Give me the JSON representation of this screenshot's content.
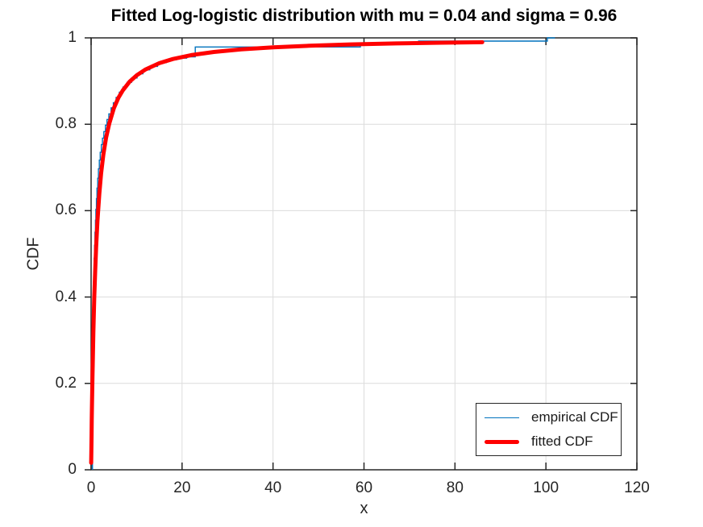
{
  "figure": {
    "title": "Fitted Log-logistic distribution with mu = 0.04 and sigma = 0.96"
  },
  "chart_data": {
    "type": "line",
    "title": "Fitted Log-logistic distribution with mu = 0.04 and sigma = 0.96",
    "xlabel": "x",
    "ylabel": "CDF",
    "xlim": [
      0,
      120
    ],
    "ylim": [
      0,
      1
    ],
    "grid": true,
    "x_ticks": {
      "values": [
        0,
        20,
        40,
        60,
        80,
        100,
        120
      ],
      "labels": [
        "0",
        "20",
        "40",
        "60",
        "80",
        "100",
        "120"
      ]
    },
    "y_ticks": {
      "values": [
        0,
        0.2,
        0.4,
        0.6,
        0.8,
        1
      ],
      "labels": [
        "0",
        "0.2",
        "0.4",
        "0.6",
        "0.8",
        "1"
      ]
    },
    "legend": {
      "position": "southeast",
      "entries": [
        {
          "label": "empirical CDF",
          "color": "#0072BD",
          "line_width": 1.4,
          "style": "step"
        },
        {
          "label": "fitted CDF",
          "color": "#FF0000",
          "line_width": 5,
          "style": "line"
        }
      ]
    },
    "series": [
      {
        "name": "empirical CDF",
        "type": "step",
        "color": "#0072BD",
        "points": [
          [
            0.3,
            0.26
          ],
          [
            0.36,
            0.31
          ],
          [
            0.42,
            0.35
          ],
          [
            0.48,
            0.39
          ],
          [
            0.54,
            0.425
          ],
          [
            0.61,
            0.458
          ],
          [
            0.68,
            0.49
          ],
          [
            0.76,
            0.52
          ],
          [
            0.85,
            0.55
          ],
          [
            0.95,
            0.578
          ],
          [
            1.05,
            0.603
          ],
          [
            1.17,
            0.628
          ],
          [
            1.3,
            0.652
          ],
          [
            1.45,
            0.675
          ],
          [
            1.62,
            0.697
          ],
          [
            1.8,
            0.717
          ],
          [
            2.0,
            0.735
          ],
          [
            2.25,
            0.753
          ],
          [
            2.5,
            0.768
          ],
          [
            2.8,
            0.783
          ],
          [
            3.15,
            0.798
          ],
          [
            3.5,
            0.811
          ],
          [
            3.9,
            0.824
          ],
          [
            4.4,
            0.838
          ],
          [
            4.9,
            0.85
          ],
          [
            5.5,
            0.862
          ],
          [
            6.2,
            0.874
          ],
          [
            7.0,
            0.886
          ],
          [
            7.9,
            0.897
          ],
          [
            8.9,
            0.907
          ],
          [
            10.1,
            0.917
          ],
          [
            11.4,
            0.926
          ],
          [
            12.9,
            0.934
          ],
          [
            14.6,
            0.9425
          ],
          [
            16.5,
            0.949
          ],
          [
            18.7,
            0.953
          ],
          [
            21.0,
            0.956
          ],
          [
            22.9,
            0.979
          ],
          [
            59.2,
            0.9855
          ],
          [
            72.0,
            0.9925
          ],
          [
            100.3,
            1.0
          ],
          [
            102.0,
            1.0
          ]
        ]
      },
      {
        "name": "fitted CDF",
        "type": "line",
        "color": "#FF0000",
        "distribution": "log-logistic",
        "mu": 0.04,
        "sigma": 0.96,
        "points": [
          [
            0.02,
            0.016
          ],
          [
            0.05,
            0.041
          ],
          [
            0.1,
            0.08
          ],
          [
            0.15,
            0.117
          ],
          [
            0.2,
            0.152
          ],
          [
            0.3,
            0.215
          ],
          [
            0.4,
            0.27
          ],
          [
            0.5,
            0.318
          ],
          [
            0.7,
            0.398
          ],
          [
            0.9,
            0.462
          ],
          [
            1.1,
            0.514
          ],
          [
            1.4,
            0.577
          ],
          [
            1.8,
            0.639
          ],
          [
            2.2,
            0.686
          ],
          [
            2.7,
            0.73
          ],
          [
            3.3,
            0.769
          ],
          [
            4.0,
            0.802
          ],
          [
            5.0,
            0.837
          ],
          [
            6.0,
            0.861
          ],
          [
            7.0,
            0.879
          ],
          [
            8.5,
            0.899
          ],
          [
            10.0,
            0.913
          ],
          [
            12.0,
            0.927
          ],
          [
            15.0,
            0.9415
          ],
          [
            18.0,
            0.9512
          ],
          [
            22.0,
            0.96
          ],
          [
            27.0,
            0.9674
          ],
          [
            33.0,
            0.9734
          ],
          [
            40.0,
            0.9781
          ],
          [
            48.0,
            0.9818
          ],
          [
            57.0,
            0.9848
          ],
          [
            67.0,
            0.9871
          ],
          [
            77.0,
            0.9888
          ],
          [
            86.0,
            0.99
          ]
        ]
      }
    ],
    "colors": {
      "axis": "#262626",
      "grid": "#dcdcdc",
      "background": "#ffffff",
      "empirical": "#0072BD",
      "fitted": "#FF0000"
    }
  }
}
